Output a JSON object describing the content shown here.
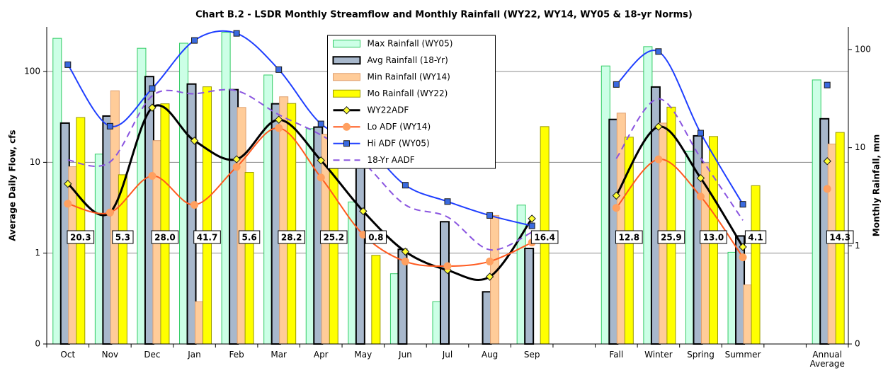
{
  "chart_data": {
    "type": "combo",
    "title": "Chart B.2 - LSDR Monthly Streamflow and Monthly Rainfall (WY22, WY14, WY05 & 18-yr Norms)",
    "y_label": "Average Daily Flow, cfs",
    "y2_label": "Monthly Rainfall, mm",
    "categories": [
      "Oct",
      "Nov",
      "Dec",
      "Jan",
      "Feb",
      "Mar",
      "Apr",
      "May",
      "Jun",
      "Jul",
      "Aug",
      "Sep",
      null,
      "Fall",
      "Winter",
      "Spring",
      "Summer",
      null,
      "Annual Average"
    ],
    "log_scale": true,
    "grid": true,
    "legend": "upper center",
    "ylim": [
      0.1,
      310
    ],
    "yticks": [
      {
        "value": 0.1,
        "label": "0"
      },
      1,
      10,
      100
    ],
    "y2lim": [
      0.1,
      170
    ],
    "y2ticks": [
      {
        "value": 0.1,
        "label": "0"
      },
      1,
      10,
      100
    ],
    "series": [
      {
        "name": "Max Rainfall (WY05)",
        "type": "bar",
        "axis": "y2",
        "color": "#ccffe6",
        "edge": "#33cc66",
        "values": [
          130,
          8.6,
          103,
          116,
          150,
          55,
          15.6,
          2.8,
          0.52,
          0.27,
          null,
          2.6,
          null,
          68,
          107,
          9.2,
          0.86,
          null,
          49
        ]
      },
      {
        "name": "Avg Rainfall (18-Yr)",
        "type": "bar",
        "axis": "y2",
        "color": "#a8b8cc",
        "edge": "#000000",
        "values": [
          17.8,
          21,
          53,
          44.5,
          39,
          28,
          16.2,
          6.4,
          0.92,
          1.76,
          0.34,
          0.94,
          null,
          19.4,
          41.5,
          13.2,
          1.26,
          null,
          19.7
        ]
      },
      {
        "name": "Min Rainfall (WY14)",
        "type": "bar",
        "axis": "y2",
        "color": "#ffcc99",
        "edge": "#e0a070",
        "values": [
          6.4,
          38,
          11.8,
          0.27,
          25.7,
          33,
          13.7,
          null,
          null,
          null,
          2.04,
          null,
          null,
          22.5,
          17.8,
          6.9,
          0.4,
          null,
          10.9
        ]
      },
      {
        "name": "Mo Rainfall (WY22)",
        "type": "bar",
        "axis": "y2",
        "color": "#ffff00",
        "edge": "#999900",
        "values": [
          20.3,
          5.3,
          28.0,
          41.7,
          5.6,
          28.2,
          25.2,
          0.8,
          null,
          null,
          null,
          16.4,
          null,
          12.8,
          25.9,
          13.0,
          4.1,
          null,
          14.3
        ],
        "value_labels": [
          "20.3",
          "5.3",
          "28.0",
          "41.7",
          "5.6",
          "28.2",
          "25.2",
          "0.8",
          null,
          null,
          null,
          "16.4",
          null,
          "12.8",
          "25.9",
          "13.0",
          "4.1",
          null,
          "14.3"
        ]
      },
      {
        "name": "WY22ADF",
        "type": "line",
        "color": "#000000",
        "marker": "diamond",
        "marker_color": "#ffff33",
        "values": [
          5.8,
          2.8,
          40,
          17.3,
          10.8,
          29.5,
          10.5,
          2.9,
          1.04,
          0.65,
          0.55,
          2.4,
          null,
          4.3,
          24.7,
          6.7,
          1.17,
          null,
          10.3
        ]
      },
      {
        "name": "Lo ADF (WY14)",
        "type": "line",
        "color": "#ff5a1f",
        "marker": "circle",
        "marker_color": "#ffa060",
        "values": [
          3.5,
          2.8,
          7.1,
          3.4,
          8.9,
          23.9,
          6.8,
          1.6,
          0.81,
          0.72,
          0.81,
          1.31,
          null,
          3.15,
          10.8,
          4.2,
          0.9,
          null,
          5.1
        ]
      },
      {
        "name": "Hi ADF (WY05)",
        "type": "line",
        "color": "#1f3fff",
        "marker": "square",
        "marker_color": "#3a6ae0",
        "values": [
          119,
          25,
          65,
          220,
          263,
          105,
          26.5,
          16.1,
          5.6,
          3.7,
          2.6,
          2.0,
          null,
          72,
          166,
          21,
          3.45,
          null,
          71
        ]
      },
      {
        "name": "18-Yr AADF",
        "type": "line",
        "color": "#8a55e0",
        "dash": true,
        "values": [
          10.6,
          10.1,
          54,
          57,
          61.5,
          33.5,
          20,
          9.9,
          3.4,
          2.5,
          1.09,
          1.7,
          null,
          11,
          50,
          11.2,
          2.3,
          null,
          null
        ]
      }
    ]
  }
}
